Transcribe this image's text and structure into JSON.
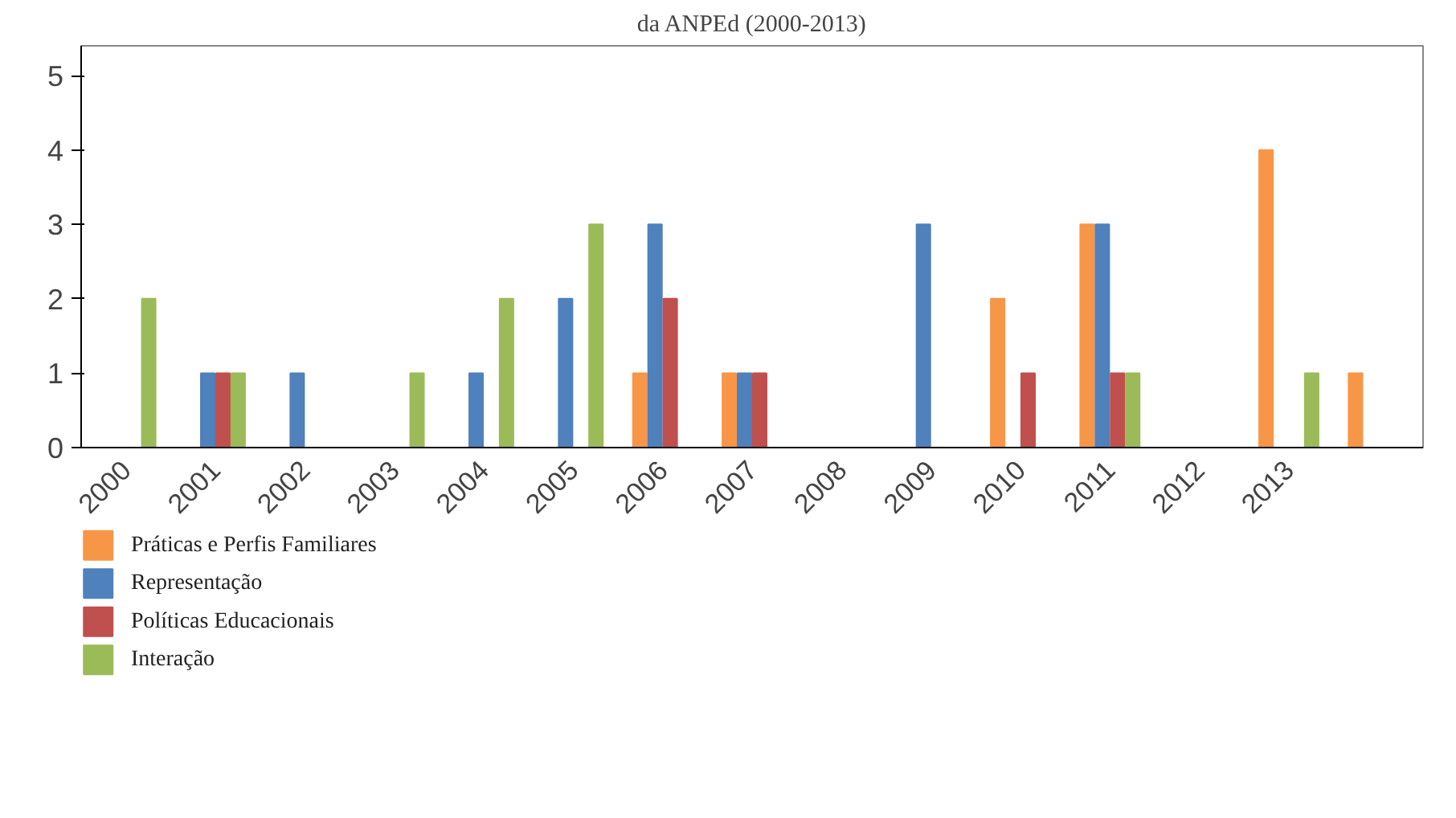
{
  "chart_data": {
    "type": "bar",
    "title": "da ANPEd (2000-2013)",
    "categories": [
      "2000",
      "2001",
      "2002",
      "2003",
      "2004",
      "2005",
      "2006",
      "2007",
      "2008",
      "2009",
      "2010",
      "2011",
      "2012",
      "2013",
      null
    ],
    "series": [
      {
        "name": "Práticas e Perfis Familiares",
        "color": "#f79646",
        "values": [
          0,
          0,
          0,
          0,
          0,
          0,
          1,
          1,
          0,
          0,
          2,
          3,
          0,
          4,
          1
        ]
      },
      {
        "name": "Representação",
        "color": "#4f81bd",
        "values": [
          0,
          1,
          1,
          0,
          1,
          2,
          3,
          1,
          0,
          3,
          0,
          3,
          0,
          0,
          0
        ]
      },
      {
        "name": "Políticas Educacionais",
        "color": "#c0504d",
        "values": [
          0,
          1,
          0,
          0,
          0,
          0,
          2,
          1,
          0,
          0,
          1,
          1,
          0,
          0,
          0
        ]
      },
      {
        "name": "Interação",
        "color": "#9bbb59",
        "values": [
          2,
          1,
          0,
          1,
          2,
          3,
          0,
          0,
          0,
          0,
          0,
          1,
          0,
          1,
          0
        ]
      }
    ],
    "ylim": [
      0,
      5.4
    ],
    "yticks": [
      0,
      1,
      2,
      3,
      4,
      5
    ],
    "grid": false,
    "legend": "bottom left"
  }
}
